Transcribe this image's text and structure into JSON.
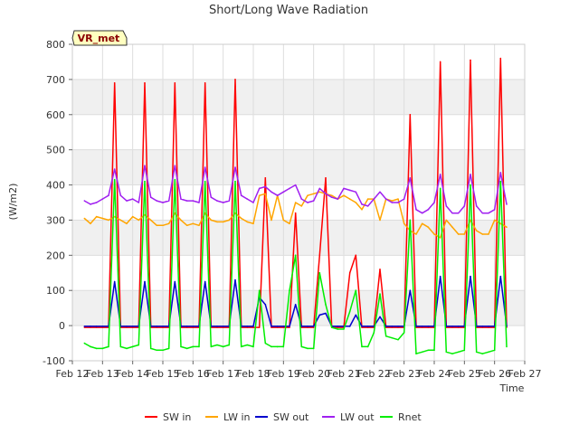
{
  "chart_data": {
    "type": "line",
    "title": "Short/Long Wave Radiation",
    "xlabel": "Time",
    "ylabel": "(W/m2)",
    "station_badge": "VR_met",
    "ylim": [
      -100,
      800
    ],
    "yticks": [
      -100,
      0,
      100,
      200,
      300,
      400,
      500,
      600,
      700,
      800
    ],
    "xlim": [
      "2023-02-12",
      "2023-02-27"
    ],
    "xticks": [
      "Feb 12",
      "Feb 13",
      "Feb 14",
      "Feb 15",
      "Feb 16",
      "Feb 17",
      "Feb 18",
      "Feb 19",
      "Feb 20",
      "Feb 21",
      "Feb 22",
      "Feb 23",
      "Feb 24",
      "Feb 25",
      "Feb 26",
      "Feb 27"
    ],
    "grid": true,
    "legend_position": "bottom",
    "x_dates": [
      "Feb 12.4",
      "Feb 12.6",
      "Feb 12.8",
      "Feb 13.0",
      "Feb 13.2",
      "Feb 13.4",
      "Feb 13.6",
      "Feb 13.8",
      "Feb 14.0",
      "Feb 14.2",
      "Feb 14.4",
      "Feb 14.6",
      "Feb 14.8",
      "Feb 15.0",
      "Feb 15.2",
      "Feb 15.4",
      "Feb 15.6",
      "Feb 15.8",
      "Feb 16.0",
      "Feb 16.2",
      "Feb 16.4",
      "Feb 16.6",
      "Feb 16.8",
      "Feb 17.0",
      "Feb 17.2",
      "Feb 17.4",
      "Feb 17.6",
      "Feb 17.8",
      "Feb 18.0",
      "Feb 18.2",
      "Feb 18.4",
      "Feb 18.6",
      "Feb 18.8",
      "Feb 19.0",
      "Feb 19.2",
      "Feb 19.4",
      "Feb 19.6",
      "Feb 19.8",
      "Feb 20.0",
      "Feb 20.2",
      "Feb 20.4",
      "Feb 20.6",
      "Feb 20.8",
      "Feb 21.0",
      "Feb 21.2",
      "Feb 21.4",
      "Feb 21.6",
      "Feb 21.8",
      "Feb 22.0",
      "Feb 22.2",
      "Feb 22.4",
      "Feb 22.6",
      "Feb 22.8",
      "Feb 23.0",
      "Feb 23.2",
      "Feb 23.4",
      "Feb 23.6",
      "Feb 23.8",
      "Feb 24.0",
      "Feb 24.2",
      "Feb 24.4",
      "Feb 24.6",
      "Feb 24.8",
      "Feb 25.0",
      "Feb 25.2",
      "Feb 25.4",
      "Feb 25.6",
      "Feb 25.8",
      "Feb 26.0",
      "Feb 26.2",
      "Feb 26.4"
    ],
    "series": [
      {
        "name": "SW in",
        "color": "#ff0000",
        "values": [
          -5,
          -5,
          -5,
          -5,
          -5,
          690,
          -5,
          -5,
          -5,
          -5,
          690,
          -5,
          -5,
          -5,
          -5,
          690,
          -5,
          -5,
          -5,
          -5,
          690,
          -5,
          -5,
          -5,
          -5,
          700,
          -5,
          -5,
          -5,
          -5,
          420,
          -5,
          -5,
          -5,
          -5,
          320,
          -5,
          -5,
          -5,
          200,
          420,
          -5,
          -5,
          -5,
          150,
          200,
          -5,
          -5,
          -5,
          160,
          -5,
          -5,
          -5,
          -5,
          600,
          -5,
          -5,
          -5,
          -5,
          750,
          -5,
          -5,
          -5,
          -5,
          755,
          -5,
          -5,
          -5,
          -5,
          760,
          -5
        ]
      },
      {
        "name": "LW in",
        "color": "#ffa500",
        "values": [
          305,
          290,
          310,
          305,
          300,
          310,
          300,
          290,
          310,
          300,
          315,
          300,
          285,
          285,
          290,
          320,
          300,
          285,
          290,
          285,
          320,
          300,
          295,
          295,
          300,
          320,
          305,
          295,
          290,
          370,
          375,
          300,
          370,
          300,
          290,
          350,
          340,
          370,
          375,
          380,
          375,
          370,
          360,
          370,
          360,
          350,
          330,
          360,
          360,
          300,
          360,
          355,
          360,
          290,
          270,
          260,
          290,
          280,
          260,
          250,
          300,
          280,
          260,
          260,
          300,
          270,
          260,
          260,
          300,
          290,
          280
        ]
      },
      {
        "name": "SW out",
        "color": "#0000cd",
        "values": [
          -2,
          -2,
          -2,
          -2,
          -2,
          125,
          -2,
          -2,
          -2,
          -2,
          125,
          -2,
          -2,
          -2,
          -2,
          125,
          -2,
          -2,
          -2,
          -2,
          125,
          -2,
          -2,
          -2,
          -2,
          130,
          -2,
          -2,
          -2,
          80,
          60,
          -2,
          -2,
          -2,
          -2,
          60,
          -2,
          -2,
          -2,
          30,
          35,
          -2,
          -2,
          -2,
          -2,
          30,
          -2,
          -2,
          -2,
          25,
          -2,
          -2,
          -2,
          -2,
          100,
          -2,
          -2,
          -2,
          -2,
          140,
          -2,
          -2,
          -2,
          -2,
          140,
          -2,
          -2,
          -2,
          -2,
          140,
          -2
        ]
      },
      {
        "name": "LW out",
        "color": "#a020f0",
        "values": [
          355,
          345,
          350,
          360,
          370,
          445,
          370,
          355,
          360,
          350,
          455,
          365,
          355,
          350,
          355,
          455,
          360,
          355,
          355,
          350,
          450,
          365,
          355,
          350,
          355,
          450,
          370,
          360,
          350,
          390,
          395,
          380,
          370,
          380,
          390,
          400,
          360,
          350,
          355,
          390,
          375,
          365,
          360,
          390,
          385,
          380,
          345,
          340,
          360,
          380,
          360,
          350,
          350,
          360,
          420,
          330,
          320,
          330,
          350,
          430,
          340,
          320,
          320,
          340,
          430,
          340,
          320,
          320,
          330,
          435,
          345
        ]
      },
      {
        "name": "Rnet",
        "color": "#00ee00",
        "values": [
          -50,
          -60,
          -65,
          -65,
          -60,
          415,
          -60,
          -65,
          -60,
          -55,
          410,
          -65,
          -70,
          -70,
          -65,
          415,
          -60,
          -65,
          -60,
          -60,
          410,
          -60,
          -55,
          -60,
          -55,
          410,
          -60,
          -55,
          -60,
          100,
          -50,
          -60,
          -60,
          -60,
          100,
          200,
          -60,
          -65,
          -65,
          150,
          60,
          -5,
          -10,
          -10,
          40,
          100,
          -60,
          -60,
          -20,
          90,
          -30,
          -35,
          -40,
          -20,
          300,
          -80,
          -75,
          -70,
          -70,
          390,
          -75,
          -80,
          -75,
          -70,
          400,
          -75,
          -80,
          -75,
          -70,
          410,
          -60
        ]
      }
    ]
  }
}
